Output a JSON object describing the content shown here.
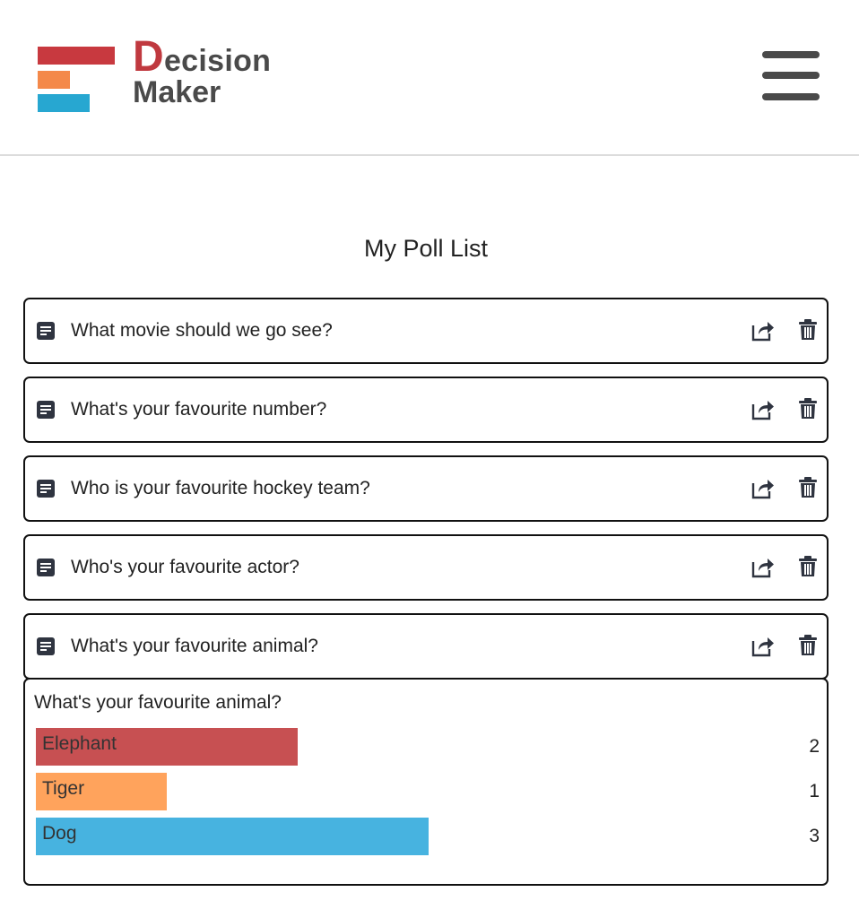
{
  "app": {
    "logo_initial": "D",
    "logo_rest": "ecision",
    "logo_line2": "Maker",
    "logo_colors": [
      "#c8393f",
      "#f4894a",
      "#27a7d1"
    ],
    "menu_icon": "hamburger-menu-icon"
  },
  "page_title": "My Poll List",
  "polls": [
    {
      "question": "What movie should we go see?"
    },
    {
      "question": "What's your favourite number?"
    },
    {
      "question": "Who is your favourite hockey team?"
    },
    {
      "question": "Who's your favourite actor?"
    },
    {
      "question": "What's your favourite animal?"
    }
  ],
  "results": {
    "question": "What's your favourite animal?",
    "options": [
      {
        "label": "Elephant",
        "count": "2",
        "votes": 2,
        "color": "#c75052"
      },
      {
        "label": "Tiger",
        "count": "1",
        "votes": 1,
        "color": "#ffa35c"
      },
      {
        "label": "Dog",
        "count": "3",
        "votes": 3,
        "color": "#47b3e0"
      }
    ]
  },
  "icons": {
    "poll": "document-icon",
    "share": "share-icon",
    "delete": "trash-icon"
  }
}
